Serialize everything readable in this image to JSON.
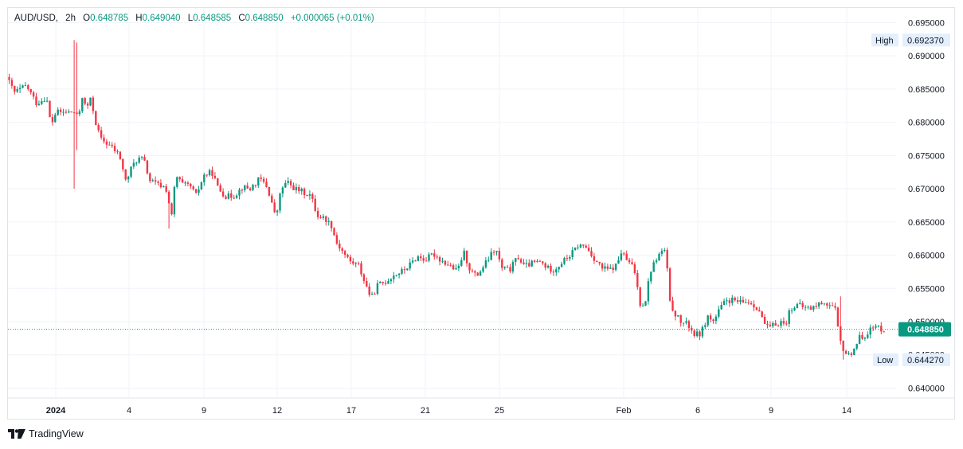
{
  "legend": {
    "symbol": "AUD/USD",
    "interval": "2h",
    "o_label": "O",
    "open": "0.648785",
    "h_label": "H",
    "high": "0.649040",
    "l_label": "L",
    "low": "0.648585",
    "c_label": "C",
    "close": "0.648850",
    "change": "+0.000065 (+0.01%)"
  },
  "brand": {
    "name": "TradingView",
    "logo_icon": "tradingview-logo-icon"
  },
  "colors": {
    "up": "#089981",
    "down": "#f23645",
    "grid": "#f0f3fa",
    "axis_text": "#131722",
    "last_price_bg": "#089981"
  },
  "chart_data": {
    "type": "candlestick",
    "title": "AUD/USD",
    "interval": "2h",
    "y_axis": {
      "position": "right",
      "min": 0.6385,
      "max": 0.6972,
      "ticks": [
        "0.695000",
        "0.690000",
        "0.685000",
        "0.680000",
        "0.675000",
        "0.670000",
        "0.665000",
        "0.660000",
        "0.655000",
        "0.650000",
        "0.645000",
        "0.640000"
      ]
    },
    "x_axis": {
      "ticks": [
        "2024",
        "4",
        "9",
        "12",
        "17",
        "21",
        "25",
        "Feb",
        "6",
        "9",
        "14"
      ],
      "bold_ticks": [
        "2024"
      ]
    },
    "markers": {
      "high": {
        "label": "High",
        "value": "0.692370"
      },
      "low": {
        "label": "Low",
        "value": "0.644270"
      },
      "last": {
        "value": "0.648850"
      }
    },
    "price_path": [
      [
        0,
        0.6868
      ],
      [
        10,
        0.6845
      ],
      [
        25,
        0.6855
      ],
      [
        38,
        0.6828
      ],
      [
        50,
        0.6838
      ],
      [
        56,
        0.6795
      ],
      [
        62,
        0.6815
      ],
      [
        85,
        0.6815
      ],
      [
        90,
        0.6805
      ],
      [
        95,
        0.684
      ],
      [
        100,
        0.682
      ],
      [
        106,
        0.6835
      ],
      [
        112,
        0.68
      ],
      [
        118,
        0.6775
      ],
      [
        130,
        0.6765
      ],
      [
        142,
        0.675
      ],
      [
        150,
        0.671
      ],
      [
        158,
        0.6735
      ],
      [
        165,
        0.6745
      ],
      [
        172,
        0.6745
      ],
      [
        180,
        0.6712
      ],
      [
        192,
        0.6705
      ],
      [
        200,
        0.6702
      ],
      [
        208,
        0.6655
      ],
      [
        212,
        0.672
      ],
      [
        222,
        0.6705
      ],
      [
        230,
        0.6705
      ],
      [
        238,
        0.669
      ],
      [
        248,
        0.672
      ],
      [
        258,
        0.6725
      ],
      [
        266,
        0.67
      ],
      [
        276,
        0.6688
      ],
      [
        286,
        0.669
      ],
      [
        296,
        0.6702
      ],
      [
        306,
        0.67
      ],
      [
        318,
        0.6715
      ],
      [
        326,
        0.6705
      ],
      [
        332,
        0.6685
      ],
      [
        338,
        0.6655
      ],
      [
        345,
        0.67
      ],
      [
        352,
        0.671
      ],
      [
        362,
        0.67
      ],
      [
        372,
        0.6695
      ],
      [
        382,
        0.669
      ],
      [
        390,
        0.666
      ],
      [
        400,
        0.6655
      ],
      [
        408,
        0.6645
      ],
      [
        414,
        0.662
      ],
      [
        424,
        0.6602
      ],
      [
        432,
        0.659
      ],
      [
        442,
        0.6585
      ],
      [
        448,
        0.6565
      ],
      [
        458,
        0.6535
      ],
      [
        466,
        0.6555
      ],
      [
        476,
        0.656
      ],
      [
        486,
        0.657
      ],
      [
        496,
        0.6575
      ],
      [
        506,
        0.6585
      ],
      [
        516,
        0.6598
      ],
      [
        526,
        0.6593
      ],
      [
        536,
        0.6602
      ],
      [
        546,
        0.6592
      ],
      [
        556,
        0.6585
      ],
      [
        566,
        0.6575
      ],
      [
        574,
        0.6605
      ],
      [
        582,
        0.6578
      ],
      [
        590,
        0.6568
      ],
      [
        600,
        0.6585
      ],
      [
        608,
        0.66
      ],
      [
        614,
        0.661
      ],
      [
        622,
        0.658
      ],
      [
        632,
        0.6578
      ],
      [
        642,
        0.6598
      ],
      [
        650,
        0.6583
      ],
      [
        660,
        0.6588
      ],
      [
        670,
        0.659
      ],
      [
        680,
        0.658
      ],
      [
        688,
        0.6578
      ],
      [
        698,
        0.659
      ],
      [
        708,
        0.66
      ],
      [
        718,
        0.6615
      ],
      [
        728,
        0.6612
      ],
      [
        738,
        0.6595
      ],
      [
        748,
        0.658
      ],
      [
        758,
        0.6578
      ],
      [
        766,
        0.6585
      ],
      [
        772,
        0.6605
      ],
      [
        780,
        0.659
      ],
      [
        788,
        0.658
      ],
      [
        796,
        0.6525
      ],
      [
        802,
        0.653
      ],
      [
        808,
        0.6575
      ],
      [
        816,
        0.6595
      ],
      [
        822,
        0.6605
      ],
      [
        828,
        0.6608
      ],
      [
        832,
        0.653
      ],
      [
        838,
        0.6515
      ],
      [
        846,
        0.65
      ],
      [
        856,
        0.6495
      ],
      [
        864,
        0.648
      ],
      [
        872,
        0.6482
      ],
      [
        880,
        0.6508
      ],
      [
        888,
        0.65
      ],
      [
        896,
        0.652
      ],
      [
        904,
        0.6532
      ],
      [
        912,
        0.6532
      ],
      [
        922,
        0.6528
      ],
      [
        932,
        0.653
      ],
      [
        944,
        0.652
      ],
      [
        950,
        0.65
      ],
      [
        956,
        0.649
      ],
      [
        964,
        0.6495
      ],
      [
        972,
        0.65
      ],
      [
        978,
        0.6495
      ],
      [
        984,
        0.652
      ],
      [
        992,
        0.6525
      ],
      [
        1000,
        0.6522
      ],
      [
        1010,
        0.652
      ],
      [
        1018,
        0.6525
      ],
      [
        1026,
        0.653
      ],
      [
        1032,
        0.6525
      ],
      [
        1040,
        0.652
      ],
      [
        1046,
        0.6472
      ],
      [
        1052,
        0.6455
      ],
      [
        1058,
        0.6448
      ],
      [
        1064,
        0.646
      ],
      [
        1070,
        0.6475
      ],
      [
        1078,
        0.648
      ],
      [
        1086,
        0.649
      ],
      [
        1094,
        0.6492
      ],
      [
        1100,
        0.6488
      ]
    ]
  }
}
